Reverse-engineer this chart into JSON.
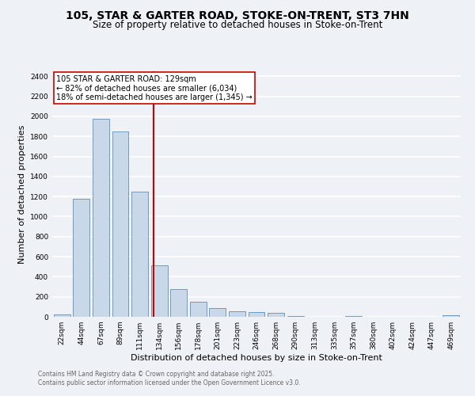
{
  "title1": "105, STAR & GARTER ROAD, STOKE-ON-TRENT, ST3 7HN",
  "title2": "Size of property relative to detached houses in Stoke-on-Trent",
  "xlabel": "Distribution of detached houses by size in Stoke-on-Trent",
  "ylabel": "Number of detached properties",
  "categories": [
    "22sqm",
    "44sqm",
    "67sqm",
    "89sqm",
    "111sqm",
    "134sqm",
    "156sqm",
    "178sqm",
    "201sqm",
    "223sqm",
    "246sqm",
    "268sqm",
    "290sqm",
    "313sqm",
    "335sqm",
    "357sqm",
    "380sqm",
    "402sqm",
    "424sqm",
    "447sqm",
    "469sqm"
  ],
  "values": [
    25,
    1175,
    1975,
    1850,
    1250,
    510,
    280,
    150,
    90,
    55,
    45,
    38,
    10,
    0,
    0,
    5,
    0,
    0,
    0,
    0,
    15
  ],
  "bar_color": "#c8d8e8",
  "bar_edge_color": "#6090b8",
  "ref_line_color": "#cc0000",
  "annotation_title": "105 STAR & GARTER ROAD: 129sqm",
  "annotation_line1": "← 82% of detached houses are smaller (6,034)",
  "annotation_line2": "18% of semi-detached houses are larger (1,345) →",
  "ylim": [
    0,
    2450
  ],
  "yticks": [
    0,
    200,
    400,
    600,
    800,
    1000,
    1200,
    1400,
    1600,
    1800,
    2000,
    2200,
    2400
  ],
  "footer1": "Contains HM Land Registry data © Crown copyright and database right 2025.",
  "footer2": "Contains public sector information licensed under the Open Government Licence v3.0.",
  "bg_color": "#eef2f7",
  "grid_color": "#ffffff",
  "title_fontsize": 10,
  "subtitle_fontsize": 8.5,
  "ylabel_fontsize": 8,
  "xlabel_fontsize": 8,
  "tick_fontsize": 6.5,
  "annotation_fontsize": 7,
  "footer_fontsize": 5.5
}
